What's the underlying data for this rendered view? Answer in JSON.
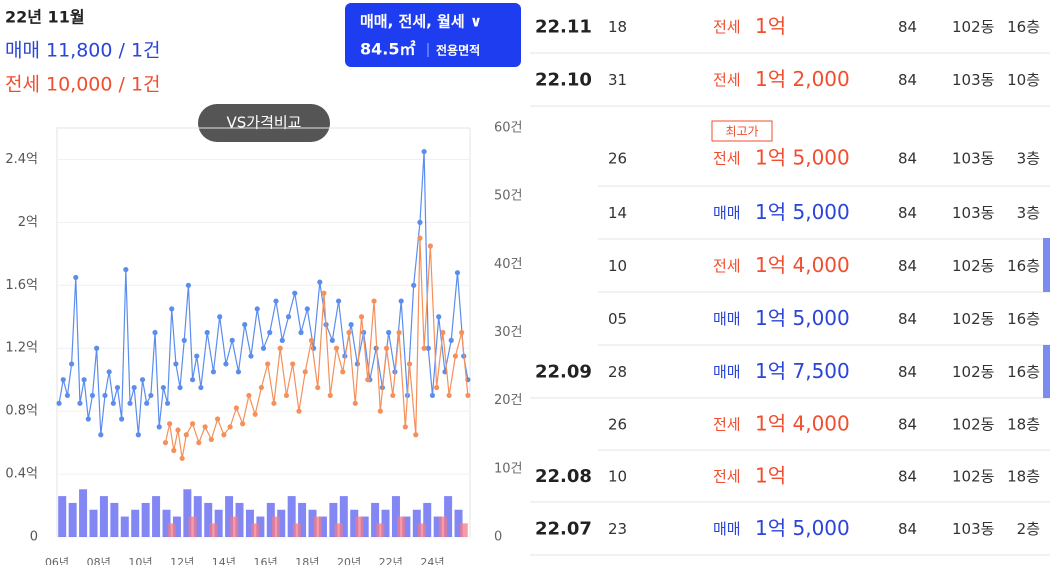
{
  "header": {
    "month": "22년 11월",
    "sale": "매매 11,800 / 1건",
    "jeonse": "전세 10,000 / 1건",
    "compare": "VS가격비교"
  },
  "filter": {
    "types": "매매, 전세, 월세 ∨",
    "area": "84.5㎡",
    "area_label": "전용면적"
  },
  "chart_data": {
    "type": "line",
    "xlim": [
      2006,
      2025.8
    ],
    "xticks": [
      {
        "value": 2006,
        "label": "06년"
      },
      {
        "value": 2008,
        "label": "08년"
      },
      {
        "value": 2010,
        "label": "10년"
      },
      {
        "value": 2012,
        "label": "12년"
      },
      {
        "value": 2014,
        "label": "14년"
      },
      {
        "value": 2016,
        "label": "16년"
      },
      {
        "value": 2018,
        "label": "18년"
      },
      {
        "value": 2020,
        "label": "20년"
      },
      {
        "value": 2022,
        "label": "22년"
      },
      {
        "value": 2024,
        "label": "24년"
      }
    ],
    "ylim": [
      0,
      2.6
    ],
    "yticks": [
      0,
      {
        "value": 0.4,
        "label": "0.4억"
      },
      {
        "value": 0.8,
        "label": "0.8억"
      },
      {
        "value": 1.2,
        "label": "1.2억"
      },
      {
        "value": 1.6,
        "label": "1.6억"
      },
      {
        "value": 2,
        "label": "2억"
      },
      {
        "value": 2.4,
        "label": "2.4억"
      }
    ],
    "y2lim": [
      0,
      60
    ],
    "y2ticks": [
      0,
      {
        "value": 10,
        "label": "10건"
      },
      {
        "value": 20,
        "label": "20건"
      },
      {
        "value": 30,
        "label": "30건"
      },
      {
        "value": 40,
        "label": "40건"
      },
      {
        "value": 50,
        "label": "50건"
      },
      {
        "value": 60,
        "label": "60건"
      }
    ],
    "grid": true,
    "series": [
      {
        "type": "line",
        "color": "#5b8def",
        "x": [
          2006.1,
          2006.3,
          2006.5,
          2006.7,
          2006.9,
          2007.1,
          2007.3,
          2007.5,
          2007.7,
          2007.9,
          2008.1,
          2008.3,
          2008.5,
          2008.7,
          2008.9,
          2009.1,
          2009.3,
          2009.5,
          2009.7,
          2009.9,
          2010.1,
          2010.3,
          2010.5,
          2010.7,
          2010.9,
          2011.1,
          2011.3,
          2011.5,
          2011.7,
          2011.9,
          2012.1,
          2012.3,
          2012.5,
          2012.7,
          2012.9,
          2013.2,
          2013.5,
          2013.8,
          2014.1,
          2014.4,
          2014.7,
          2015.0,
          2015.3,
          2015.6,
          2015.9,
          2016.2,
          2016.5,
          2016.8,
          2017.1,
          2017.4,
          2017.7,
          2018.0,
          2018.3,
          2018.6,
          2018.9,
          2019.2,
          2019.5,
          2019.8,
          2020.1,
          2020.4,
          2020.7,
          2021.0,
          2021.3,
          2021.6,
          2021.9,
          2022.2,
          2022.5,
          2022.8,
          2023.1,
          2023.4,
          2023.6,
          2023.8,
          2024.0,
          2024.3,
          2024.6,
          2024.9,
          2025.2,
          2025.5,
          2025.7
        ],
        "values": [
          0.85,
          1.0,
          0.9,
          1.1,
          1.65,
          0.85,
          1.0,
          0.75,
          0.9,
          1.2,
          0.65,
          0.9,
          1.05,
          0.85,
          0.95,
          0.75,
          1.7,
          0.85,
          0.95,
          0.65,
          1.0,
          0.85,
          0.9,
          1.3,
          0.7,
          0.95,
          0.85,
          1.45,
          1.1,
          0.95,
          1.25,
          1.6,
          1.0,
          1.15,
          0.95,
          1.3,
          1.05,
          1.4,
          1.1,
          1.25,
          1.05,
          1.35,
          1.15,
          1.45,
          1.2,
          1.3,
          1.5,
          1.25,
          1.4,
          1.55,
          1.3,
          1.45,
          1.2,
          1.62,
          1.35,
          1.25,
          1.5,
          1.15,
          1.35,
          1.1,
          1.3,
          1.0,
          1.2,
          0.95,
          1.3,
          1.05,
          1.5,
          0.9,
          1.6,
          2.0,
          2.45,
          1.2,
          0.9,
          1.4,
          1.05,
          1.25,
          1.68,
          1.15,
          1.0
        ]
      },
      {
        "type": "line",
        "color": "#f5905a",
        "x": [
          2011.2,
          2011.4,
          2011.6,
          2011.8,
          2012.0,
          2012.2,
          2012.5,
          2012.8,
          2013.1,
          2013.4,
          2013.7,
          2014.0,
          2014.3,
          2014.6,
          2014.9,
          2015.2,
          2015.5,
          2015.8,
          2016.1,
          2016.4,
          2016.7,
          2017.0,
          2017.3,
          2017.6,
          2017.9,
          2018.2,
          2018.5,
          2018.8,
          2019.1,
          2019.4,
          2019.7,
          2020.0,
          2020.3,
          2020.6,
          2020.9,
          2021.2,
          2021.5,
          2021.8,
          2022.1,
          2022.4,
          2022.7,
          2022.9,
          2023.2,
          2023.4,
          2023.6,
          2023.9,
          2024.2,
          2024.5,
          2024.8,
          2025.1,
          2025.4,
          2025.7
        ],
        "values": [
          0.6,
          0.72,
          0.55,
          0.68,
          0.5,
          0.65,
          0.72,
          0.6,
          0.7,
          0.62,
          0.75,
          0.65,
          0.7,
          0.82,
          0.72,
          0.9,
          0.78,
          0.95,
          1.1,
          0.85,
          1.2,
          0.9,
          1.1,
          0.8,
          1.05,
          1.25,
          0.95,
          1.55,
          0.9,
          1.2,
          1.05,
          1.3,
          0.85,
          1.4,
          1.0,
          1.5,
          0.8,
          1.2,
          0.9,
          1.3,
          0.7,
          1.1,
          0.65,
          1.9,
          1.2,
          1.85,
          0.95,
          1.3,
          0.9,
          1.15,
          1.3,
          0.9
        ]
      },
      {
        "type": "bar",
        "axis": "y2",
        "color": "#5a5ff0",
        "x": [
          2006.25,
          2006.75,
          2007.25,
          2007.75,
          2008.25,
          2008.75,
          2009.25,
          2009.75,
          2010.25,
          2010.75,
          2011.25,
          2011.75,
          2012.25,
          2012.75,
          2013.25,
          2013.75,
          2014.25,
          2014.75,
          2015.25,
          2015.75,
          2016.25,
          2016.75,
          2017.25,
          2017.75,
          2018.25,
          2018.75,
          2019.25,
          2019.75,
          2020.25,
          2020.75,
          2021.25,
          2021.75,
          2022.25,
          2022.75,
          2023.25,
          2023.75,
          2024.25,
          2024.75,
          2025.25
        ],
        "values": [
          6,
          5,
          7,
          4,
          6,
          5,
          3,
          4,
          5,
          6,
          4,
          3,
          7,
          6,
          5,
          4,
          6,
          5,
          4,
          3,
          5,
          4,
          6,
          5,
          4,
          3,
          5,
          6,
          4,
          3,
          5,
          4,
          6,
          3,
          4,
          5,
          3,
          6,
          4
        ]
      },
      {
        "type": "bar",
        "axis": "y2",
        "color": "#f07a8a",
        "x": [
          2011.5,
          2012.5,
          2013.5,
          2014.5,
          2015.5,
          2016.5,
          2017.5,
          2018.5,
          2019.5,
          2020.5,
          2021.5,
          2022.5,
          2023.5,
          2024.5,
          2025.5
        ],
        "values": [
          2,
          3,
          2,
          3,
          2,
          3,
          2,
          3,
          2,
          3,
          2,
          3,
          2,
          3,
          2
        ]
      }
    ]
  },
  "table": {
    "rows": [
      {
        "month": "22.11",
        "day": "18",
        "type": "전세",
        "price": "1억",
        "area": "84",
        "dong": "102동",
        "floor": "16층"
      },
      {
        "month": "22.10",
        "day": "31",
        "type": "전세",
        "price": "1억 2,000",
        "area": "84",
        "dong": "103동",
        "floor": "10층"
      },
      {
        "day": "26",
        "badge": "최고가",
        "type": "전세",
        "price": "1억 5,000",
        "area": "84",
        "dong": "103동",
        "floor": "3층"
      },
      {
        "day": "14",
        "type": "매매",
        "price": "1억 5,000",
        "area": "84",
        "dong": "103동",
        "floor": "3층"
      },
      {
        "day": "10",
        "type": "전세",
        "price": "1억 4,000",
        "area": "84",
        "dong": "102동",
        "floor": "16층"
      },
      {
        "day": "05",
        "type": "매매",
        "price": "1억 5,000",
        "area": "84",
        "dong": "102동",
        "floor": "16층"
      },
      {
        "month": "22.09",
        "day": "28",
        "type": "매매",
        "price": "1억 7,500",
        "area": "84",
        "dong": "102동",
        "floor": "16층"
      },
      {
        "day": "26",
        "type": "전세",
        "price": "1억 4,000",
        "area": "84",
        "dong": "102동",
        "floor": "18층"
      },
      {
        "month": "22.08",
        "day": "10",
        "type": "전세",
        "price": "1억",
        "area": "84",
        "dong": "102동",
        "floor": "18층"
      },
      {
        "month": "22.07",
        "day": "23",
        "type": "매매",
        "price": "1억 5,000",
        "area": "84",
        "dong": "103동",
        "floor": "2층"
      }
    ]
  }
}
